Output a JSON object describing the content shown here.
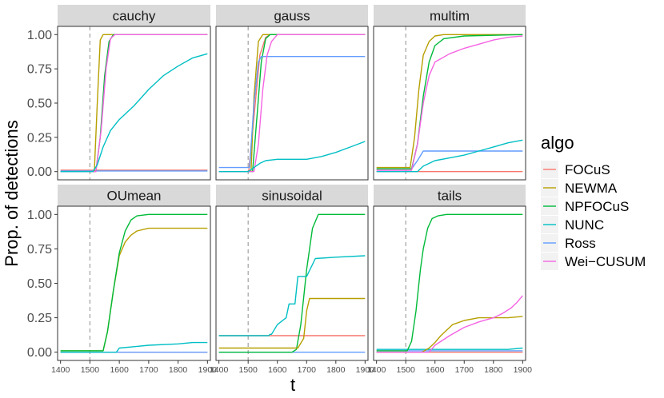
{
  "chart_data": {
    "type": "line",
    "ylabel": "Prop. of detections",
    "xlabel": "t",
    "xlim": [
      1390,
      1910
    ],
    "ylim": [
      -0.06,
      1.06
    ],
    "xticks": [
      1400,
      1500,
      1600,
      1700,
      1800,
      1900
    ],
    "yticks": [
      0.0,
      0.25,
      0.5,
      0.75,
      1.0
    ],
    "ytick_labels": [
      "0.00",
      "0.25",
      "0.50",
      "0.75",
      "1.00"
    ],
    "changepoint": 1500,
    "legend": {
      "title": "algo",
      "entries": [
        {
          "name": "FOCuS",
          "color": "#F8766D"
        },
        {
          "name": "NEWMA",
          "color": "#B79F00"
        },
        {
          "name": "NPFOCuS",
          "color": "#00BA38"
        },
        {
          "name": "NUNC",
          "color": "#00BFC4"
        },
        {
          "name": "Ross",
          "color": "#619CFF"
        },
        {
          "name": "Wei−CUSUM",
          "color": "#F564E3"
        }
      ]
    },
    "panels": [
      {
        "title": "cauchy",
        "series": [
          {
            "name": "FOCuS",
            "x": [
              1400,
              1900
            ],
            "y": [
              0.01,
              0.01
            ]
          },
          {
            "name": "Ross",
            "x": [
              1400,
              1900
            ],
            "y": [
              0.005,
              0.005
            ]
          },
          {
            "name": "NEWMA",
            "x": [
              1400,
              1515,
              1525,
              1535,
              1545,
              1560,
              1900
            ],
            "y": [
              0,
              0,
              0.5,
              0.96,
              1.0,
              1.0,
              1.0
            ]
          },
          {
            "name": "NPFOCuS",
            "x": [
              1400,
              1520,
              1535,
              1550,
              1565,
              1580,
              1900
            ],
            "y": [
              0,
              0,
              0.25,
              0.7,
              0.95,
              1.0,
              1.0
            ]
          },
          {
            "name": "Wei−CUSUM",
            "x": [
              1400,
              1520,
              1538,
              1555,
              1570,
              1585,
              1900
            ],
            "y": [
              0,
              0,
              0.3,
              0.75,
              0.97,
              1.0,
              1.0
            ]
          },
          {
            "name": "NUNC",
            "x": [
              1400,
              1510,
              1525,
              1545,
              1570,
              1600,
              1650,
              1700,
              1750,
              1800,
              1850,
              1900
            ],
            "y": [
              0,
              0,
              0.05,
              0.18,
              0.3,
              0.38,
              0.48,
              0.6,
              0.7,
              0.77,
              0.83,
              0.86
            ]
          }
        ]
      },
      {
        "title": "gauss",
        "series": [
          {
            "name": "FOCuS",
            "x": [
              1400,
              1502,
              1520,
              1540,
              1560,
              1575,
              1900
            ],
            "y": [
              0,
              0,
              0.4,
              0.85,
              0.98,
              1.0,
              1.0
            ]
          },
          {
            "name": "NEWMA",
            "x": [
              1400,
              1510,
              1520,
              1535,
              1550,
              1900
            ],
            "y": [
              0,
              0,
              0.55,
              0.95,
              1.0,
              1.0
            ]
          },
          {
            "name": "NPFOCuS",
            "x": [
              1400,
              1515,
              1530,
              1545,
              1560,
              1575,
              1900
            ],
            "y": [
              0,
              0,
              0.4,
              0.8,
              0.97,
              1.0,
              1.0
            ]
          },
          {
            "name": "Ross",
            "x": [
              1400,
              1505,
              1520,
              1535,
              1545,
              1900
            ],
            "y": [
              0.03,
              0.03,
              0.5,
              0.8,
              0.84,
              0.84
            ]
          },
          {
            "name": "Wei−CUSUM",
            "x": [
              1400,
              1520,
              1535,
              1550,
              1565,
              1580,
              1600,
              1900
            ],
            "y": [
              0,
              0,
              0.2,
              0.6,
              0.85,
              0.95,
              1.0,
              1.0
            ]
          },
          {
            "name": "NUNC",
            "x": [
              1400,
              1500,
              1520,
              1540,
              1560,
              1600,
              1700,
              1750,
              1800,
              1850,
              1900
            ],
            "y": [
              0,
              0,
              0.03,
              0.06,
              0.08,
              0.09,
              0.09,
              0.11,
              0.14,
              0.18,
              0.22
            ]
          }
        ]
      },
      {
        "title": "multim",
        "series": [
          {
            "name": "FOCuS",
            "x": [
              1400,
              1900
            ],
            "y": [
              0.0,
              0.0
            ]
          },
          {
            "name": "Ross",
            "x": [
              1400,
              1520,
              1540,
              1560,
              1900
            ],
            "y": [
              0.02,
              0.02,
              0.08,
              0.15,
              0.15
            ]
          },
          {
            "name": "NUNC",
            "x": [
              1400,
              1540,
              1560,
              1600,
              1650,
              1700,
              1750,
              1800,
              1850,
              1900
            ],
            "y": [
              0.0,
              0.0,
              0.04,
              0.08,
              0.1,
              0.12,
              0.15,
              0.18,
              0.21,
              0.23
            ]
          },
          {
            "name": "NEWMA",
            "x": [
              1400,
              1515,
              1530,
              1545,
              1560,
              1580,
              1600,
              1630,
              1900
            ],
            "y": [
              0.03,
              0.03,
              0.25,
              0.6,
              0.85,
              0.95,
              0.99,
              1.0,
              1.0
            ]
          },
          {
            "name": "NPFOCuS",
            "x": [
              1400,
              1520,
              1540,
              1560,
              1580,
              1600,
              1630,
              1700,
              1900
            ],
            "y": [
              0.02,
              0.02,
              0.2,
              0.55,
              0.8,
              0.92,
              0.97,
              0.99,
              1.0
            ]
          },
          {
            "name": "Wei−CUSUM",
            "x": [
              1400,
              1520,
              1540,
              1560,
              1580,
              1600,
              1650,
              1700,
              1750,
              1800,
              1850,
              1900
            ],
            "y": [
              0.01,
              0.01,
              0.2,
              0.5,
              0.7,
              0.8,
              0.86,
              0.9,
              0.93,
              0.96,
              0.98,
              0.99
            ]
          }
        ]
      },
      {
        "title": "OUmean",
        "series": [
          {
            "name": "FOCuS",
            "x": [
              1400,
              1900
            ],
            "y": [
              0.0,
              0.0
            ]
          },
          {
            "name": "Ross",
            "x": [
              1400,
              1900
            ],
            "y": [
              0.0,
              0.0
            ]
          },
          {
            "name": "NEWMA",
            "x": [
              1400,
              1545,
              1560,
              1580,
              1600,
              1620,
              1640,
              1660,
              1700,
              1900
            ],
            "y": [
              0.01,
              0.01,
              0.15,
              0.45,
              0.7,
              0.8,
              0.85,
              0.88,
              0.9,
              0.9
            ]
          },
          {
            "name": "NPFOCuS",
            "x": [
              1400,
              1545,
              1560,
              1580,
              1600,
              1620,
              1640,
              1660,
              1700,
              1900
            ],
            "y": [
              0.01,
              0.01,
              0.15,
              0.45,
              0.72,
              0.88,
              0.96,
              0.99,
              1.0,
              1.0
            ]
          },
          {
            "name": "NUNC",
            "x": [
              1400,
              1590,
              1600,
              1650,
              1700,
              1800,
              1850,
              1900
            ],
            "y": [
              0.0,
              0.0,
              0.03,
              0.04,
              0.05,
              0.06,
              0.07,
              0.07
            ]
          }
        ]
      },
      {
        "title": "sinusoidal",
        "series": [
          {
            "name": "FOCuS",
            "x": [
              1400,
              1900
            ],
            "y": [
              0.12,
              0.12
            ]
          },
          {
            "name": "Ross",
            "x": [
              1400,
              1900
            ],
            "y": [
              0.0,
              0.0
            ]
          },
          {
            "name": "NPFOCuS",
            "x": [
              1400,
              1650,
              1665,
              1680,
              1700,
              1720,
              1740,
              1900
            ],
            "y": [
              0.0,
              0.0,
              0.02,
              0.2,
              0.6,
              0.9,
              1.0,
              1.0
            ]
          },
          {
            "name": "NEWMA",
            "x": [
              1400,
              1655,
              1670,
              1690,
              1700,
              1710,
              1900
            ],
            "y": [
              0.03,
              0.03,
              0.03,
              0.1,
              0.3,
              0.39,
              0.39
            ]
          },
          {
            "name": "NUNC",
            "x": [
              1400,
              1570,
              1575,
              1580,
              1600,
              1630,
              1640,
              1660,
              1670,
              1700,
              1730,
              1800,
              1900
            ],
            "y": [
              0.12,
              0.12,
              0.13,
              0.13,
              0.2,
              0.25,
              0.35,
              0.35,
              0.55,
              0.55,
              0.68,
              0.69,
              0.7
            ]
          }
        ]
      },
      {
        "title": "tails",
        "series": [
          {
            "name": "FOCuS",
            "x": [
              1400,
              1900
            ],
            "y": [
              0.0,
              0.0
            ]
          },
          {
            "name": "Ross",
            "x": [
              1400,
              1900
            ],
            "y": [
              0.01,
              0.01
            ]
          },
          {
            "name": "NUNC",
            "x": [
              1400,
              1850,
              1900
            ],
            "y": [
              0.02,
              0.02,
              0.03
            ]
          },
          {
            "name": "NPFOCuS",
            "x": [
              1400,
              1505,
              1520,
              1535,
              1550,
              1560,
              1575,
              1590,
              1610,
              1640,
              1900
            ],
            "y": [
              0.01,
              0.01,
              0.08,
              0.3,
              0.6,
              0.75,
              0.9,
              0.97,
              0.99,
              1.0,
              1.0
            ]
          },
          {
            "name": "NEWMA",
            "x": [
              1400,
              1555,
              1580,
              1600,
              1620,
              1640,
              1660,
              1700,
              1750,
              1800,
              1850,
              1900
            ],
            "y": [
              0.0,
              0.0,
              0.03,
              0.07,
              0.12,
              0.16,
              0.2,
              0.23,
              0.25,
              0.25,
              0.25,
              0.26
            ]
          },
          {
            "name": "Wei−CUSUM",
            "x": [
              1400,
              1580,
              1600,
              1650,
              1700,
              1750,
              1800,
              1830,
              1860,
              1880,
              1900
            ],
            "y": [
              0.0,
              0.0,
              0.05,
              0.12,
              0.18,
              0.22,
              0.25,
              0.28,
              0.32,
              0.36,
              0.41
            ]
          }
        ]
      }
    ]
  }
}
